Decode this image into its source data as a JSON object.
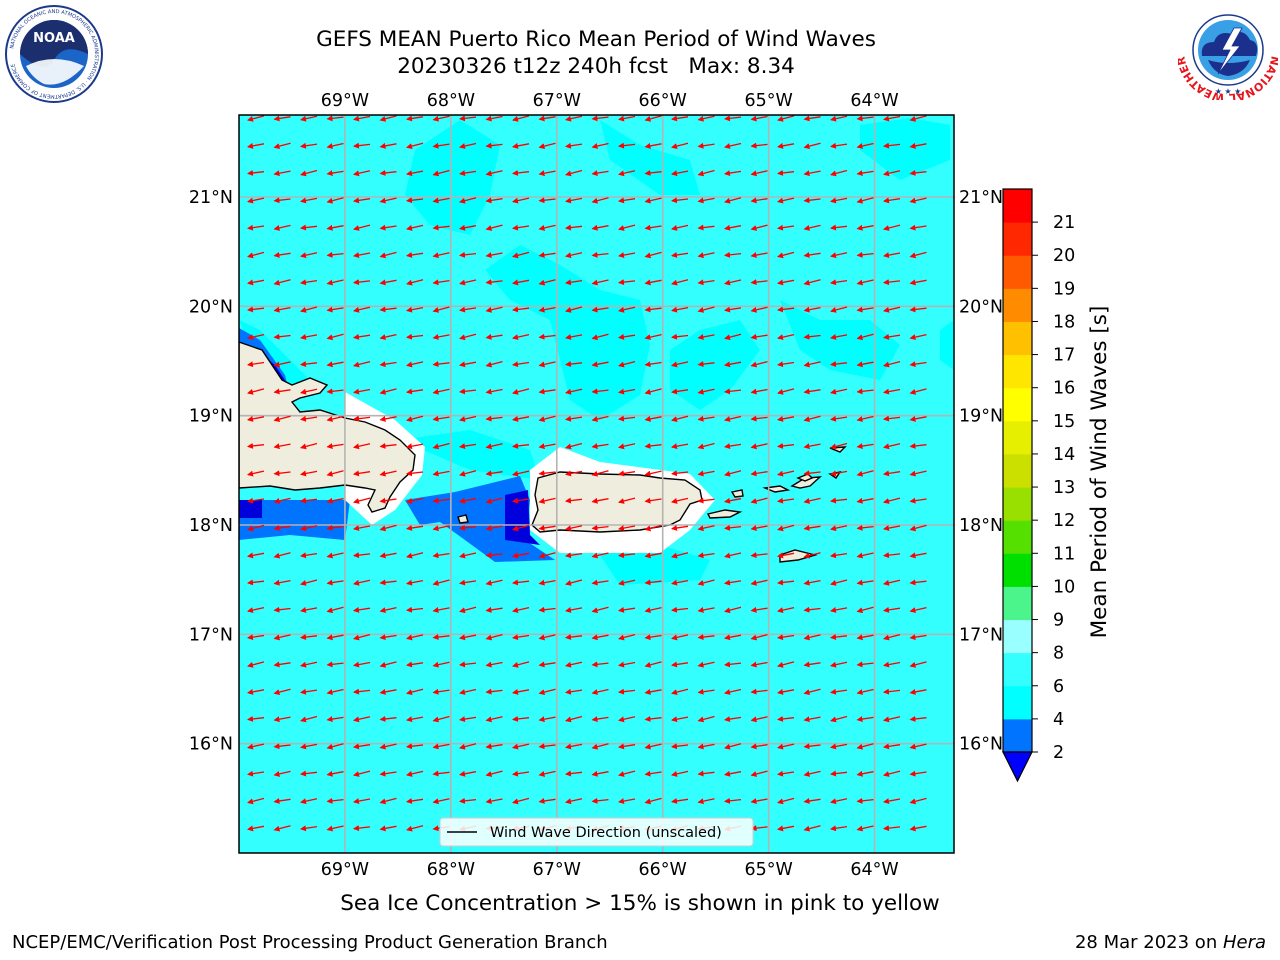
{
  "header": {
    "title_line1": "GEFS MEAN Puerto Rico Mean Period of Wind Waves",
    "title_line2": "20230326 t12z 240h fcst   Max: 8.34"
  },
  "logos": {
    "left": {
      "name": "noaa-logo",
      "text": "NOAA",
      "ring_text": "NATIONAL OCEANIC AND ATMOSPHERIC ADMINISTRATION · U.S. DEPARTMENT OF COMMERCE"
    },
    "right": {
      "name": "nws-logo",
      "ring_text": "NATIONAL WEATHER SERVICE"
    }
  },
  "map": {
    "lon_labels": [
      "69°W",
      "68°W",
      "67°W",
      "66°W",
      "65°W",
      "64°W"
    ],
    "lat_labels": [
      "21°N",
      "20°N",
      "19°N",
      "18°N",
      "17°N",
      "16°N"
    ],
    "lon_values": [
      -69,
      -68,
      -67,
      -66,
      -65,
      -64
    ],
    "lat_values": [
      21,
      20,
      19,
      18,
      17,
      16
    ],
    "extent": {
      "lon_min": -70.0,
      "lon_max": -63.25,
      "lat_min": 15.0,
      "lat_max": 21.75
    },
    "ocean_color": "#33ffff",
    "land_color": "#efedde",
    "arrow_color": "#ff0000",
    "legend_label": "Wind Wave Direction (unscaled)",
    "wind_direction": "toward west-southwest"
  },
  "colorbar": {
    "label": "Mean Period of Wind Waves [s]",
    "ticks": [
      "2",
      "4",
      "6",
      "8",
      "9",
      "10",
      "11",
      "12",
      "13",
      "14",
      "15",
      "16",
      "17",
      "18",
      "19",
      "20",
      "21"
    ],
    "colors": [
      "#0073ff",
      "#00ffff",
      "#33ffff",
      "#99ffff",
      "#4cf58c",
      "#00e000",
      "#55e000",
      "#99e000",
      "#cce000",
      "#e6ef00",
      "#ffff00",
      "#ffe600",
      "#ffc000",
      "#ff8c00",
      "#ff5a00",
      "#ff2800",
      "#ff0000"
    ],
    "under_color": "#0000ff"
  },
  "caption": "Sea Ice Concentration > 15% is shown in pink to yellow",
  "footer": {
    "left": "NCEP/EMC/Verification Post Processing Product Generation Branch",
    "right_date": "28 Mar 2023 on ",
    "right_machine": "Hera"
  }
}
